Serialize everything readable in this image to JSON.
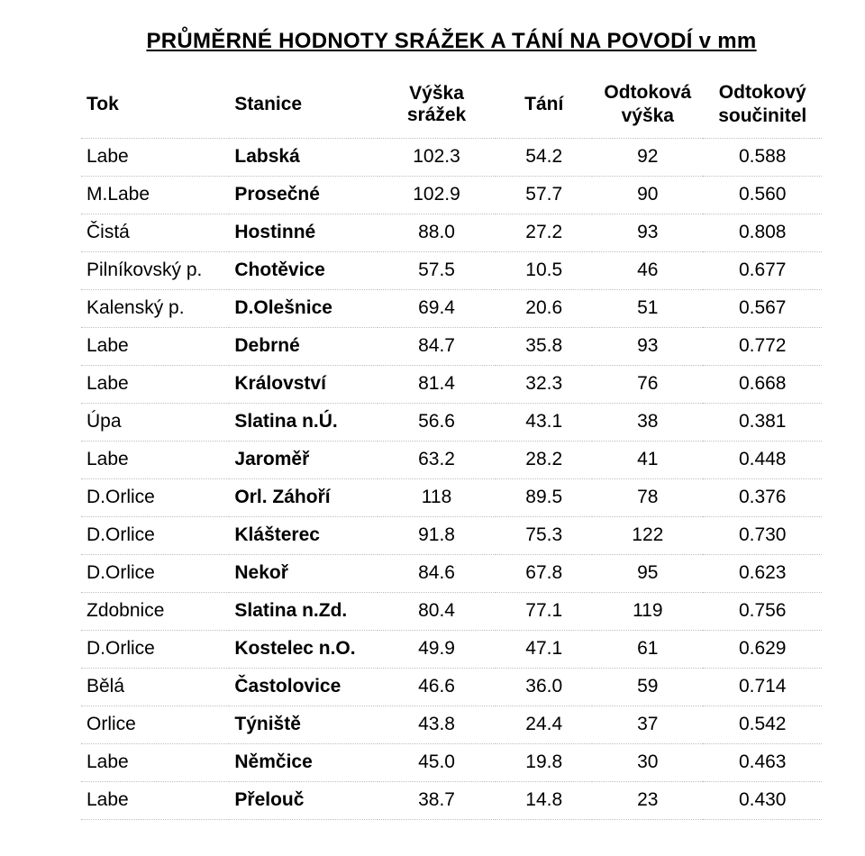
{
  "title": "PRŮMĚRNÉ HODNOTY SRÁŽEK A TÁNÍ NA POVODÍ v mm",
  "table": {
    "columns": [
      {
        "key": "tok",
        "label": "Tok",
        "align": "left",
        "multiline": false
      },
      {
        "key": "stanice",
        "label": "Stanice",
        "align": "left",
        "multiline": false
      },
      {
        "key": "vyska",
        "label": "Výška srážek",
        "align": "center",
        "multiline": false
      },
      {
        "key": "tani",
        "label": "Tání",
        "align": "center",
        "multiline": false
      },
      {
        "key": "odvyska",
        "label": "Odtoková\nvýška",
        "align": "center",
        "multiline": true
      },
      {
        "key": "soucinitel",
        "label": "Odtokový\nsoučinitel",
        "align": "center",
        "multiline": true
      }
    ],
    "rows": [
      {
        "tok": "Labe",
        "stanice": "Labská",
        "vyska": "102.3",
        "tani": "54.2",
        "odvyska": "92",
        "soucinitel": "0.588"
      },
      {
        "tok": "M.Labe",
        "stanice": "Prosečné",
        "vyska": "102.9",
        "tani": "57.7",
        "odvyska": "90",
        "soucinitel": "0.560"
      },
      {
        "tok": "Čistá",
        "stanice": "Hostinné",
        "vyska": "88.0",
        "tani": "27.2",
        "odvyska": "93",
        "soucinitel": "0.808"
      },
      {
        "tok": "Pilníkovský p.",
        "stanice": "Chotěvice",
        "vyska": "57.5",
        "tani": "10.5",
        "odvyska": "46",
        "soucinitel": "0.677"
      },
      {
        "tok": "Kalenský p.",
        "stanice": "D.Olešnice",
        "vyska": "69.4",
        "tani": "20.6",
        "odvyska": "51",
        "soucinitel": "0.567"
      },
      {
        "tok": "Labe",
        "stanice": "Debrné",
        "vyska": "84.7",
        "tani": "35.8",
        "odvyska": "93",
        "soucinitel": "0.772"
      },
      {
        "tok": "Labe",
        "stanice": "Království",
        "vyska": "81.4",
        "tani": "32.3",
        "odvyska": "76",
        "soucinitel": "0.668"
      },
      {
        "tok": "Úpa",
        "stanice": "Slatina n.Ú.",
        "vyska": "56.6",
        "tani": "43.1",
        "odvyska": "38",
        "soucinitel": "0.381"
      },
      {
        "tok": "Labe",
        "stanice": "Jaroměř",
        "vyska": "63.2",
        "tani": "28.2",
        "odvyska": "41",
        "soucinitel": "0.448"
      },
      {
        "tok": "D.Orlice",
        "stanice": "Orl. Záhoří",
        "vyska": "118",
        "tani": "89.5",
        "odvyska": "78",
        "soucinitel": "0.376"
      },
      {
        "tok": "D.Orlice",
        "stanice": "Klášterec",
        "vyska": "91.8",
        "tani": "75.3",
        "odvyska": "122",
        "soucinitel": "0.730"
      },
      {
        "tok": "D.Orlice",
        "stanice": "Nekoř",
        "vyska": "84.6",
        "tani": "67.8",
        "odvyska": "95",
        "soucinitel": "0.623"
      },
      {
        "tok": "Zdobnice",
        "stanice": "Slatina n.Zd.",
        "vyska": "80.4",
        "tani": "77.1",
        "odvyska": "119",
        "soucinitel": "0.756"
      },
      {
        "tok": "D.Orlice",
        "stanice": "Kostelec n.O.",
        "vyska": "49.9",
        "tani": "47.1",
        "odvyska": "61",
        "soucinitel": "0.629"
      },
      {
        "tok": "Bělá",
        "stanice": "Častolovice",
        "vyska": "46.6",
        "tani": "36.0",
        "odvyska": "59",
        "soucinitel": "0.714"
      },
      {
        "tok": "Orlice",
        "stanice": "Týniště",
        "vyska": "43.8",
        "tani": "24.4",
        "odvyska": "37",
        "soucinitel": "0.542"
      },
      {
        "tok": "Labe",
        "stanice": "Němčice",
        "vyska": "45.0",
        "tani": "19.8",
        "odvyska": "30",
        "soucinitel": "0.463"
      },
      {
        "tok": "Labe",
        "stanice": "Přelouč",
        "vyska": "38.7",
        "tani": "14.8",
        "odvyska": "23",
        "soucinitel": "0.430"
      }
    ],
    "style": {
      "header_fontsize": 21,
      "cell_fontsize": 21,
      "title_fontsize": 24,
      "border_color": "#bfbfbf",
      "text_color": "#000000",
      "background_color": "#ffffff",
      "row_border_style": "dotted"
    }
  }
}
